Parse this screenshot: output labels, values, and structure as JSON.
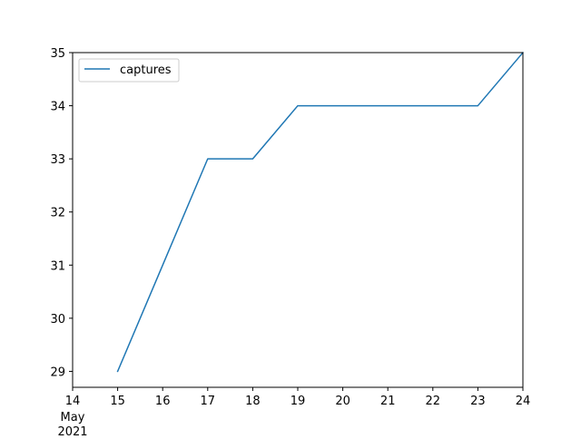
{
  "chart_data": {
    "type": "line",
    "x": [
      "2021-05-15",
      "2021-05-16",
      "2021-05-17",
      "2021-05-18",
      "2021-05-19",
      "2021-05-20",
      "2021-05-21",
      "2021-05-22",
      "2021-05-23",
      "2021-05-24"
    ],
    "series": [
      {
        "name": "captures",
        "values": [
          29,
          31,
          33,
          33,
          34,
          34,
          34,
          34,
          34,
          35
        ],
        "color": "#1f77b4"
      }
    ],
    "xlim": [
      "2021-05-14",
      "2021-05-24"
    ],
    "ylim": [
      28.7,
      35
    ],
    "x_tick_labels": [
      "14",
      "15",
      "16",
      "17",
      "18",
      "19",
      "20",
      "21",
      "22",
      "23",
      "24"
    ],
    "x_tick_sublabel": {
      "month": "May",
      "year": "2021"
    },
    "y_ticks": [
      29,
      30,
      31,
      32,
      33,
      34,
      35
    ],
    "legend_position": "top-left",
    "grid": false
  }
}
